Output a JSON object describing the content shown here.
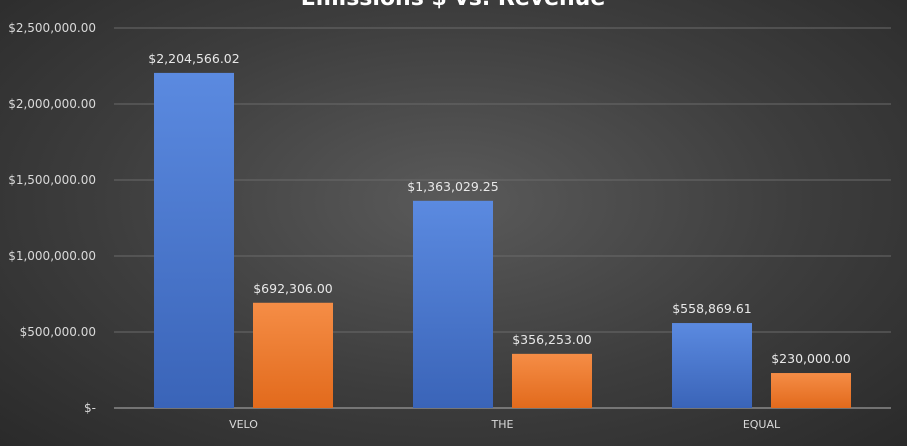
{
  "chart_data": {
    "type": "bar",
    "title": "Emissions $ vs. Revenue",
    "categories": [
      "VELO",
      "THE",
      "EQUAL"
    ],
    "series": [
      {
        "values": [
          2204566.02,
          1363029.25,
          558869.61
        ],
        "labels": [
          "$2,204,566.02",
          "$1,363,029.25",
          "$558,869.61"
        ],
        "color": "#4f7fd4"
      },
      {
        "values": [
          692306.0,
          356253.0,
          230000.0
        ],
        "labels": [
          "$692,306.00",
          "$356,253.00",
          "$230,000.00"
        ],
        "color": "#f07b2e"
      }
    ],
    "ylim": [
      0,
      2500000
    ],
    "yticks": [
      0,
      500000,
      1000000,
      1500000,
      2000000,
      2500000
    ],
    "ytick_labels": [
      "$-",
      "$500,000.00",
      "$1,000,000.00",
      "$1,500,000.00",
      "$2,000,000.00",
      "$2,500,000.00"
    ],
    "grid": true,
    "legend": "none"
  }
}
